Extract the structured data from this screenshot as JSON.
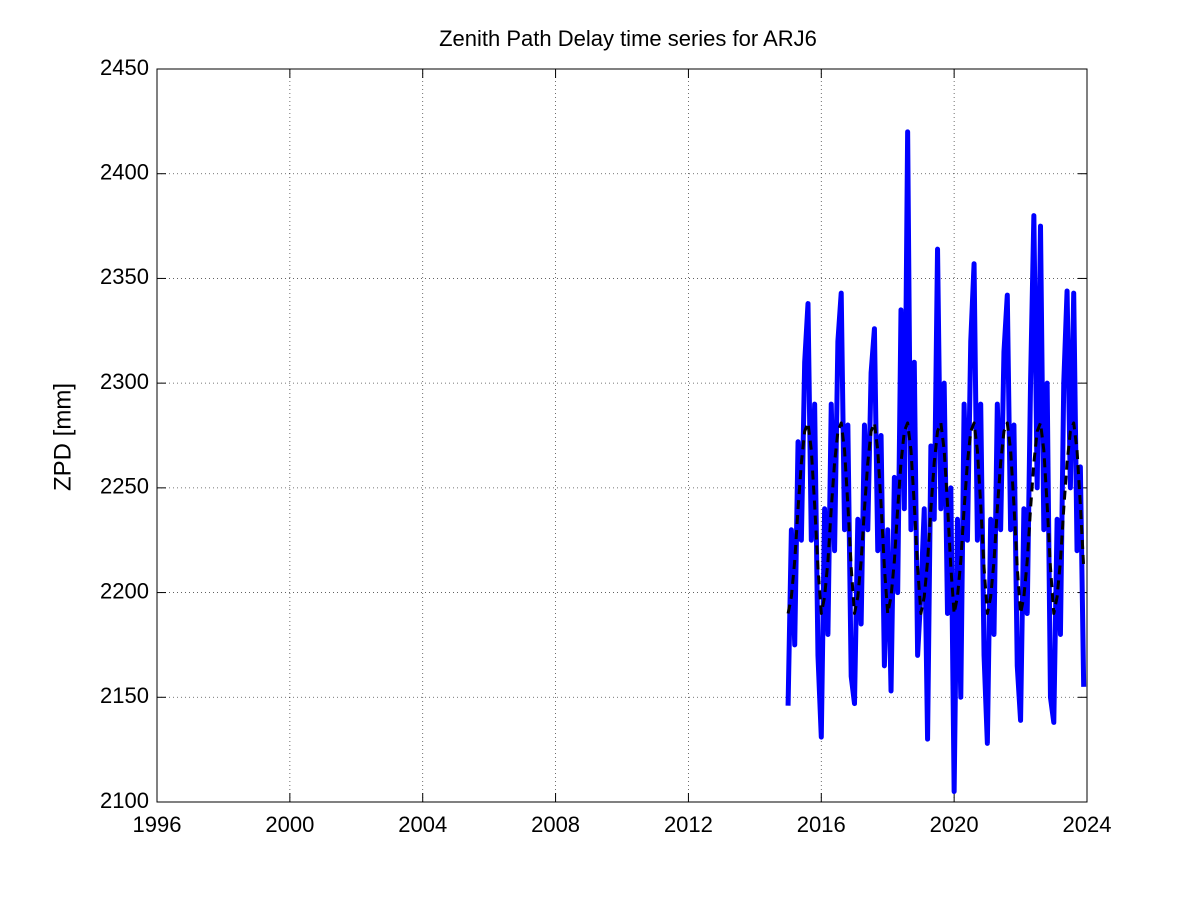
{
  "chart_data": {
    "type": "line",
    "title": "Zenith Path Delay time series for ARJ6",
    "y_label": "ZPD [mm]",
    "x": [
      2015.0,
      2015.1,
      2015.2,
      2015.3,
      2015.4,
      2015.5,
      2015.6,
      2015.7,
      2015.8,
      2015.9,
      2016.0,
      2016.1,
      2016.2,
      2016.3,
      2016.4,
      2016.5,
      2016.6,
      2016.7,
      2016.8,
      2016.9,
      2017.0,
      2017.1,
      2017.2,
      2017.3,
      2017.4,
      2017.5,
      2017.6,
      2017.7,
      2017.8,
      2017.9,
      2018.0,
      2018.1,
      2018.2,
      2018.3,
      2018.4,
      2018.5,
      2018.6,
      2018.7,
      2018.8,
      2018.9,
      2019.0,
      2019.1,
      2019.2,
      2019.3,
      2019.4,
      2019.5,
      2019.6,
      2019.7,
      2019.8,
      2019.9,
      2020.0,
      2020.1,
      2020.2,
      2020.3,
      2020.4,
      2020.5,
      2020.6,
      2020.7,
      2020.8,
      2020.9,
      2021.0,
      2021.1,
      2021.2,
      2021.3,
      2021.4,
      2021.5,
      2021.6,
      2021.7,
      2021.8,
      2021.9,
      2022.0,
      2022.1,
      2022.2,
      2022.3,
      2022.4,
      2022.5,
      2022.6,
      2022.7,
      2022.8,
      2022.9,
      2023.0,
      2023.1,
      2023.2,
      2023.3,
      2023.4,
      2023.5,
      2023.6,
      2023.7,
      2023.8,
      2023.9
    ],
    "series": [
      {
        "color": "#0000ff",
        "width": 5,
        "dashed": false,
        "values": [
          2146,
          2230,
          2175,
          2272,
          2225,
          2310,
          2338,
          2225,
          2290,
          2170,
          2131,
          2240,
          2180,
          2290,
          2220,
          2320,
          2343,
          2230,
          2280,
          2160,
          2147,
          2235,
          2185,
          2280,
          2230,
          2305,
          2326,
          2220,
          2275,
          2165,
          2230,
          2153,
          2255,
          2200,
          2335,
          2240,
          2420,
          2230,
          2310,
          2170,
          2200,
          2240,
          2130,
          2270,
          2235,
          2364,
          2240,
          2300,
          2190,
          2250,
          2105,
          2235,
          2150,
          2290,
          2225,
          2320,
          2357,
          2225,
          2290,
          2170,
          2128,
          2235,
          2180,
          2290,
          2230,
          2315,
          2342,
          2230,
          2280,
          2165,
          2139,
          2240,
          2190,
          2300,
          2380,
          2250,
          2375,
          2230,
          2300,
          2150,
          2138,
          2235,
          2180,
          2300,
          2344,
          2250,
          2343,
          2220,
          2260,
          2155
        ]
      },
      {
        "color": "#000000",
        "width": 3,
        "dashed": true,
        "values": [
          2190,
          2198,
          2215,
          2240,
          2262,
          2277,
          2281,
          2268,
          2242,
          2212,
          2190,
          2198,
          2215,
          2240,
          2262,
          2277,
          2281,
          2268,
          2242,
          2212,
          2190,
          2198,
          2215,
          2240,
          2262,
          2277,
          2281,
          2268,
          2242,
          2212,
          2190,
          2198,
          2215,
          2240,
          2262,
          2277,
          2281,
          2268,
          2242,
          2212,
          2190,
          2198,
          2215,
          2240,
          2262,
          2277,
          2281,
          2268,
          2242,
          2212,
          2190,
          2198,
          2215,
          2240,
          2262,
          2277,
          2281,
          2268,
          2242,
          2212,
          2190,
          2198,
          2215,
          2240,
          2262,
          2277,
          2281,
          2268,
          2242,
          2212,
          2190,
          2198,
          2215,
          2240,
          2262,
          2277,
          2281,
          2268,
          2242,
          2212,
          2190,
          2198,
          2215,
          2240,
          2262,
          2277,
          2281,
          2268,
          2242,
          2212
        ]
      }
    ],
    "xlim": [
      1996,
      2024
    ],
    "xticks": [
      1996,
      2000,
      2004,
      2008,
      2012,
      2016,
      2020,
      2024
    ],
    "ylim": [
      2100,
      2450
    ],
    "yticks": [
      2100,
      2150,
      2200,
      2250,
      2300,
      2350,
      2400,
      2450
    ],
    "grid": true
  }
}
